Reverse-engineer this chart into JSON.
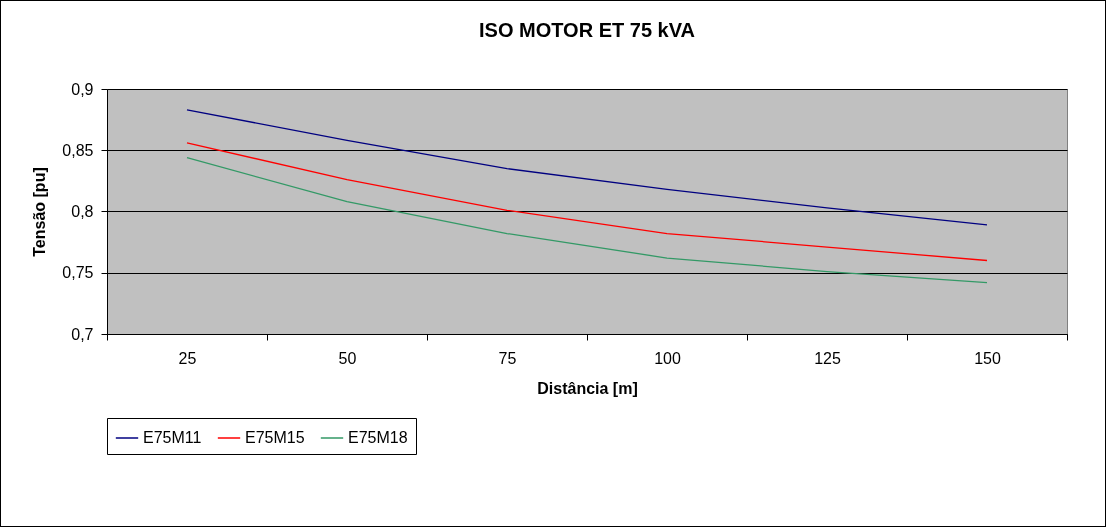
{
  "chart_data": {
    "type": "line",
    "title": "ISO MOTOR ET 75 kVA",
    "xlabel": "Distância [m]",
    "ylabel": "Tensão [pu]",
    "categories": [
      "25",
      "50",
      "75",
      "100",
      "125",
      "150"
    ],
    "series": [
      {
        "name": "E75M11",
        "color": "#000080",
        "values": [
          0.883,
          0.858,
          0.835,
          0.818,
          0.803,
          0.789
        ]
      },
      {
        "name": "E75M15",
        "color": "#ff0000",
        "values": [
          0.856,
          0.826,
          0.801,
          0.782,
          0.771,
          0.76
        ]
      },
      {
        "name": "E75M18",
        "color": "#339966",
        "values": [
          0.844,
          0.808,
          0.782,
          0.762,
          0.751,
          0.742
        ]
      }
    ],
    "ylim": [
      0.7,
      0.9
    ],
    "yticks": [
      {
        "value": 0.7,
        "label": "0,7"
      },
      {
        "value": 0.75,
        "label": "0,75"
      },
      {
        "value": 0.8,
        "label": "0,8"
      },
      {
        "value": 0.85,
        "label": "0,85"
      },
      {
        "value": 0.9,
        "label": "0,9"
      }
    ],
    "grid": "y",
    "legend": "bottom",
    "marker": "none",
    "line_style": "solid"
  }
}
